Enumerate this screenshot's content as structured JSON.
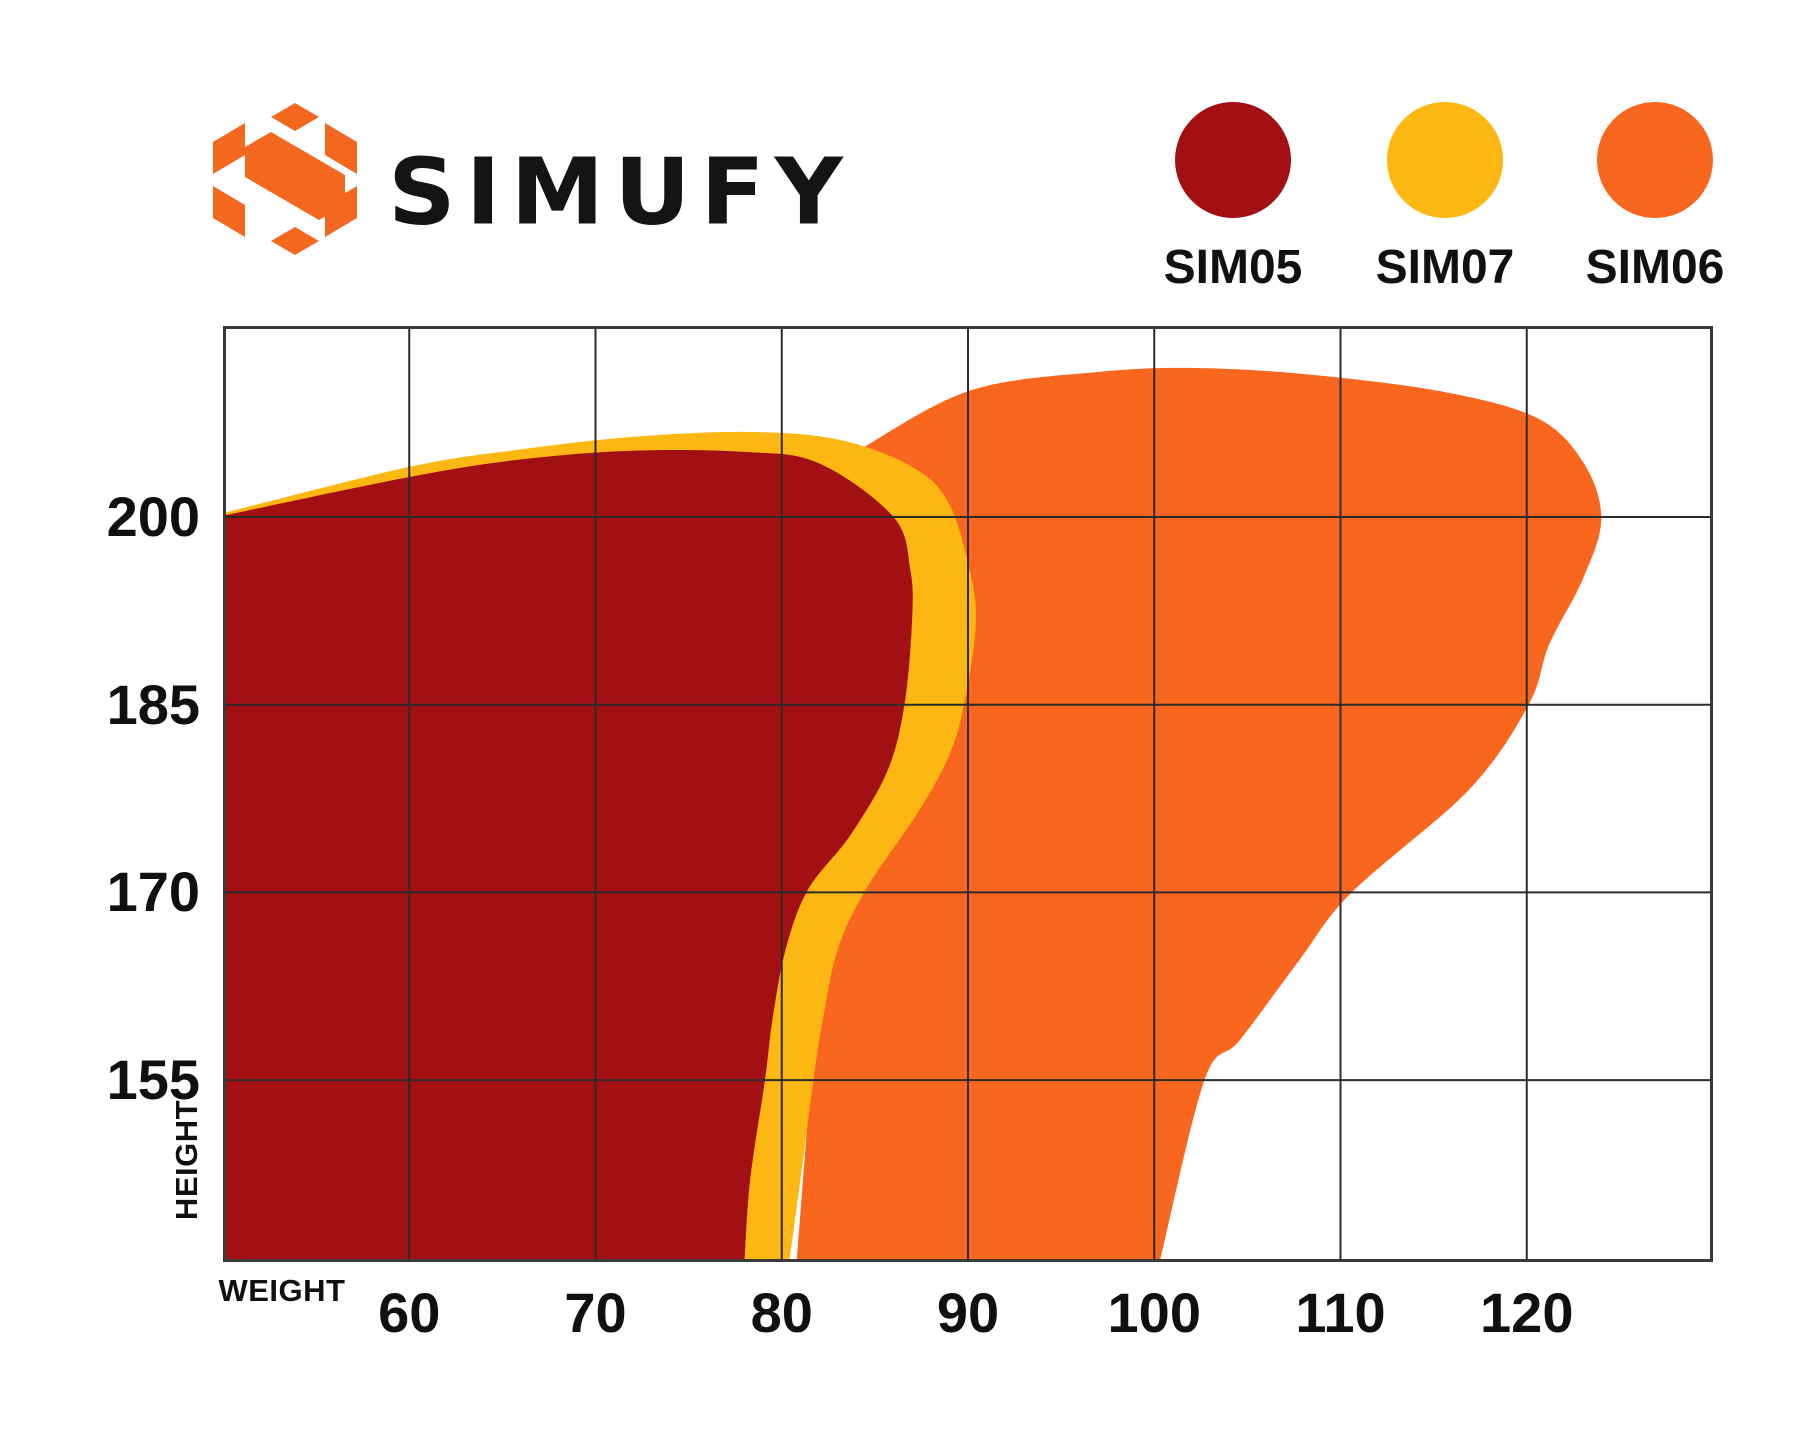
{
  "page": {
    "background": "#ffffff"
  },
  "brand": {
    "wordmark": "SIMUFY",
    "logo_icon": "simufy-hex-s-icon"
  },
  "colors": {
    "brand_orange": "#F4671F",
    "sim05_red": "#A31014",
    "sim07_yellow": "#FCB713",
    "sim06_orange": "#F8671D",
    "grid_line": "#2b2b2b",
    "chart_border": "#3a3a3a",
    "text": "#101010"
  },
  "legend": {
    "items": [
      {
        "id": "sim05",
        "label": "SIM05",
        "color": "#A31014"
      },
      {
        "id": "sim07",
        "label": "SIM07",
        "color": "#FCB713"
      },
      {
        "id": "sim06",
        "label": "SIM06",
        "color": "#F8671D"
      }
    ]
  },
  "chart_data": {
    "type": "area",
    "title": "",
    "xlabel": "WEIGHT",
    "ylabel": "HEIGHT",
    "x_ticks": [
      60,
      70,
      80,
      90,
      100,
      110,
      120
    ],
    "y_ticks": [
      200,
      185,
      170,
      155
    ],
    "x_range": [
      50,
      130
    ],
    "y_range": [
      140.5,
      215.3
    ],
    "grid": true,
    "legend_position": "top-right",
    "description": "Overlapping fit envelopes of three models (weight vs height). SIM06 drawn behind, SIM07 middle, SIM05 on top.",
    "series": [
      {
        "name": "SIM06",
        "color": "#F8671D",
        "boundary": [
          [
            84.2,
            205.4
          ],
          [
            90.1,
            210.1
          ],
          [
            97.1,
            211.6
          ],
          [
            102.5,
            211.9
          ],
          [
            108.9,
            211.3
          ],
          [
            115.9,
            209.9
          ],
          [
            120.7,
            207.8
          ],
          [
            123.1,
            204.2
          ],
          [
            124.0,
            199.8
          ],
          [
            123.0,
            195.0
          ],
          [
            121.2,
            189.8
          ],
          [
            120.1,
            185.0
          ],
          [
            116.9,
            178.2
          ],
          [
            110.6,
            170.0
          ],
          [
            107.8,
            164.6
          ],
          [
            104.6,
            158.2
          ],
          [
            102.7,
            155.0
          ],
          [
            100.3,
            140.5
          ]
        ],
        "close": [
          [
            80.8,
            140.5
          ]
        ]
      },
      {
        "name": "SIM07",
        "color": "#FCB713",
        "boundary": [
          [
            50.0,
            200.3
          ],
          [
            60.0,
            204.0
          ],
          [
            66.0,
            205.4
          ],
          [
            72.0,
            206.4
          ],
          [
            78.0,
            206.8
          ],
          [
            83.0,
            206.2
          ],
          [
            87.0,
            204.0
          ],
          [
            89.0,
            201.0
          ],
          [
            90.2,
            195.0
          ],
          [
            90.4,
            191.0
          ],
          [
            89.8,
            185.1
          ],
          [
            89.0,
            181.0
          ],
          [
            87.4,
            176.6
          ],
          [
            84.5,
            170.2
          ],
          [
            83.0,
            165.4
          ],
          [
            82.2,
            159.8
          ],
          [
            81.7,
            155.0
          ],
          [
            81.0,
            147.0
          ],
          [
            80.4,
            140.5
          ]
        ],
        "close": [
          [
            50.0,
            140.5
          ]
        ]
      },
      {
        "name": "SIM05",
        "color": "#A31014",
        "boundary": [
          [
            50.0,
            200.1
          ],
          [
            60.0,
            203.2
          ],
          [
            66.0,
            204.6
          ],
          [
            72.0,
            205.3
          ],
          [
            78.0,
            205.2
          ],
          [
            82.0,
            204.3
          ],
          [
            86.0,
            200.0
          ],
          [
            86.9,
            195.8
          ],
          [
            87.0,
            191.8
          ],
          [
            86.6,
            185.1
          ],
          [
            85.7,
            179.8
          ],
          [
            83.7,
            174.6
          ],
          [
            81.4,
            170.2
          ],
          [
            80.2,
            165.4
          ],
          [
            79.5,
            159.8
          ],
          [
            79.1,
            155.0
          ],
          [
            78.3,
            147.0
          ],
          [
            78.0,
            140.5
          ]
        ],
        "close": [
          [
            50.0,
            140.5
          ]
        ]
      }
    ]
  }
}
